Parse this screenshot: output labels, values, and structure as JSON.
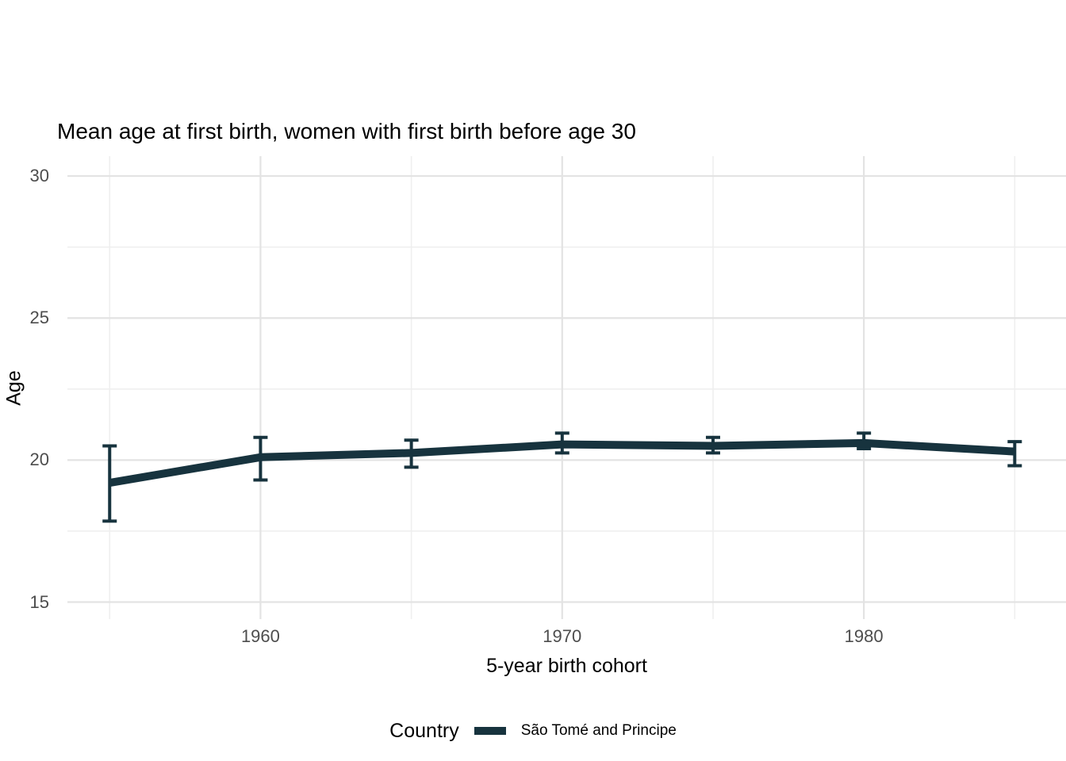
{
  "chart_data": {
    "type": "line",
    "title": "Mean age at first birth, women with first birth before age 30",
    "xlabel": "5-year birth cohort",
    "ylabel": "Age",
    "x_ticks": [
      1960,
      1970,
      1980
    ],
    "x_minor_ticks": [
      1955,
      1965,
      1975,
      1985
    ],
    "y_ticks": [
      15,
      20,
      25,
      30
    ],
    "y_minor_ticks": [
      17.5,
      22.5,
      27.5
    ],
    "xlim": [
      1953.6,
      1986.7
    ],
    "ylim": [
      14.4,
      30.7
    ],
    "grid": "on",
    "grid_major_color": "#e3e3e3",
    "grid_minor_color": "#efefef",
    "axis_text_color": "#4d4d4d",
    "legend_position": "bottom",
    "legend_title": "Country",
    "series": [
      {
        "name": "São Tomé and Principe",
        "color": "#17333e",
        "x": [
          1955,
          1960,
          1965,
          1970,
          1975,
          1980,
          1985
        ],
        "y": [
          19.2,
          20.1,
          20.25,
          20.55,
          20.5,
          20.6,
          20.3
        ],
        "ymin": [
          17.85,
          19.3,
          19.75,
          20.25,
          20.25,
          20.4,
          19.8
        ],
        "ymax": [
          20.5,
          20.8,
          20.7,
          20.95,
          20.8,
          20.95,
          20.65
        ]
      }
    ]
  }
}
